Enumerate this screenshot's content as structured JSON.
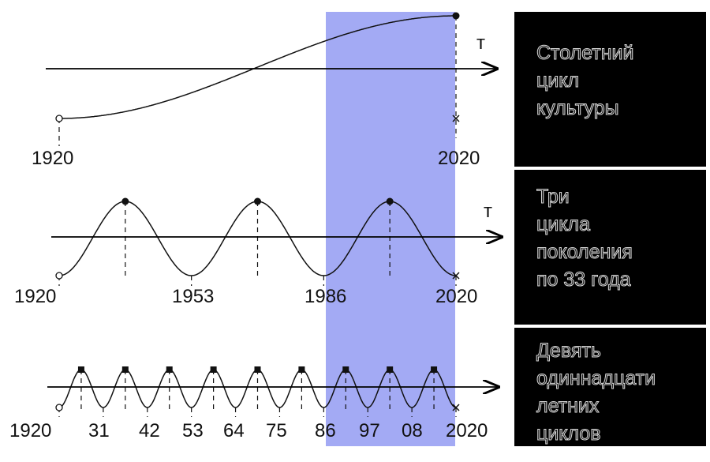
{
  "panels": [
    {
      "axis_label": "т",
      "years": [
        "1920",
        "2020"
      ]
    },
    {
      "axis_label": "т",
      "years": [
        "1920",
        "1953",
        "1986",
        "2020"
      ]
    },
    {
      "years": [
        "1920",
        "31",
        "42",
        "53",
        "64",
        "75",
        "86",
        "97",
        "08",
        "2020"
      ]
    }
  ],
  "captions": [
    [
      "Столетний",
      "цикл",
      "культуры"
    ],
    [
      "Три",
      "цикла",
      "поколения",
      "по 33 года"
    ],
    [
      "Девять",
      "одиннадцати",
      "летних",
      "циклов"
    ]
  ]
}
